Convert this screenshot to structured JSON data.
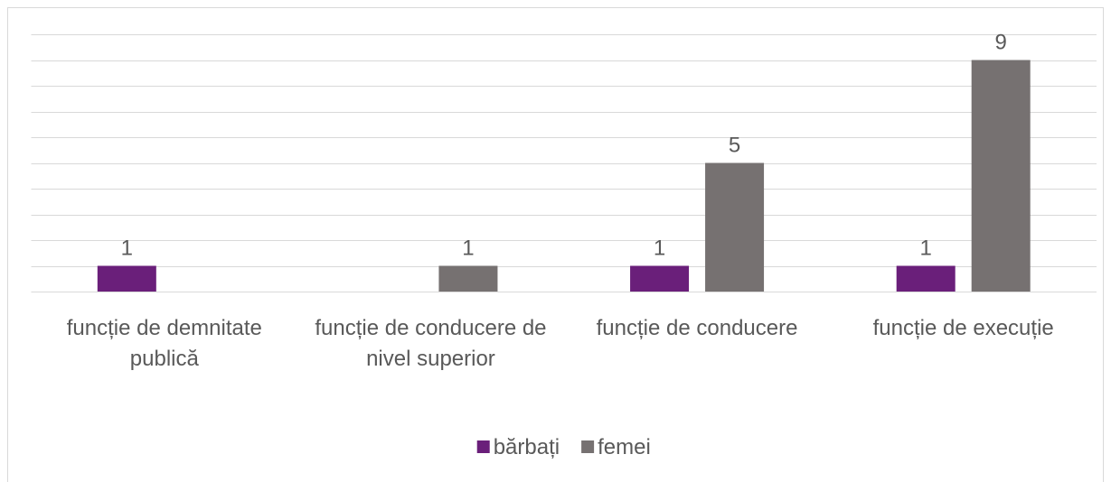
{
  "chart_data": {
    "type": "bar",
    "categories": [
      "funcție de demnitate publică",
      "funcție de conducere de nivel superior",
      "funcție de conducere",
      "funcție de execuție"
    ],
    "series": [
      {
        "name": "bărbați",
        "color": "#6a1f7a",
        "values": [
          1,
          null,
          1,
          1
        ]
      },
      {
        "name": "femei",
        "color": "#767171",
        "values": [
          null,
          1,
          5,
          9
        ]
      }
    ],
    "ylim": [
      0,
      10
    ],
    "yticks": [
      0,
      1,
      2,
      3,
      4,
      5,
      6,
      7,
      8,
      9,
      10
    ],
    "grid": true,
    "legend": "bottom"
  }
}
